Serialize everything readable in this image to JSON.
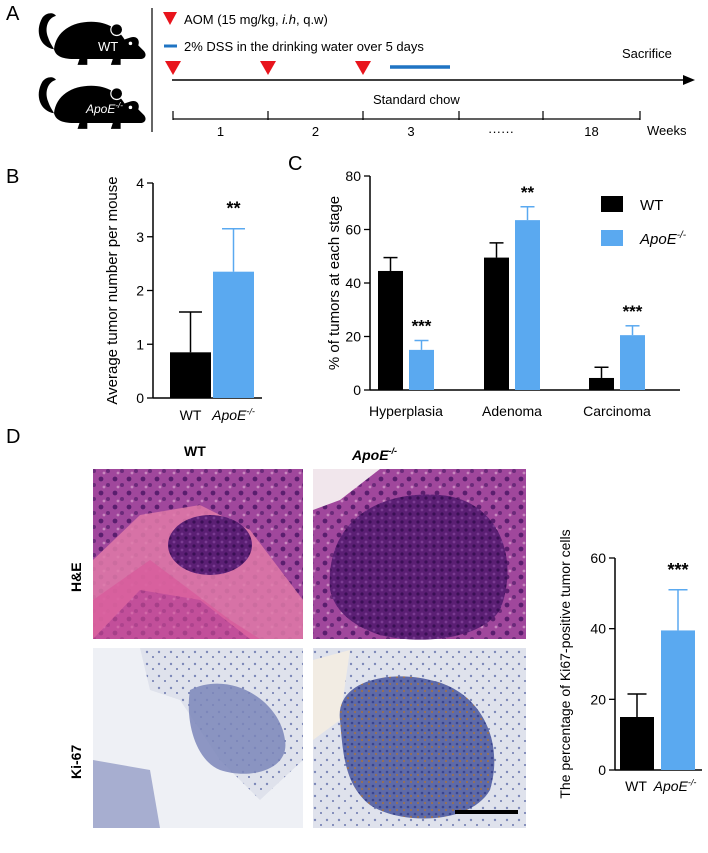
{
  "panels": {
    "a": "A",
    "b": "B",
    "c": "C",
    "d": "D"
  },
  "colors": {
    "wt": "#000000",
    "apoe": "#5aa9f0",
    "aom_marker": "#e8141c",
    "dss_bar": "#1f74c3"
  },
  "timeline": {
    "mouse_wt_label": "WT",
    "mouse_apoe_label": "ApoE",
    "mouse_apoe_sup": "-/-",
    "legend_aom_prefix": "AOM (15 mg/kg, ",
    "legend_aom_route": "i.h",
    "legend_aom_suffix": ", q.w)",
    "legend_dss": "2% DSS in the drinking water over 5 days",
    "sacrifice": "Sacrifice",
    "chow": "Standard chow",
    "weeks": [
      "1",
      "2",
      "3",
      "······",
      "18"
    ],
    "weeks_label": "Weeks",
    "icons": [
      "mouse-icon",
      "triangle-down-icon"
    ]
  },
  "chart_data": [
    {
      "type": "bar",
      "id": "B",
      "categories": [
        "WT",
        "ApoE-/-"
      ],
      "category_labels": [
        {
          "base": "WT",
          "sup": ""
        },
        {
          "base": "ApoE",
          "sup": "-/-"
        }
      ],
      "values": [
        0.85,
        2.35
      ],
      "errors": [
        0.75,
        0.8
      ],
      "ylabel": "Average tumor number per mouse",
      "ylim": [
        0,
        4
      ],
      "yticks": [
        "0",
        "1",
        "2",
        "3",
        "4"
      ],
      "annotations": [
        "",
        "**"
      ]
    },
    {
      "type": "bar",
      "id": "C",
      "categories": [
        "Hyperplasia",
        "Adenoma",
        "Carcinoma"
      ],
      "series": [
        {
          "name": "WT",
          "values": [
            44.5,
            49.5,
            4.5
          ],
          "errors": [
            5,
            5.5,
            4
          ]
        },
        {
          "name": "ApoE-/-",
          "values": [
            15,
            63.5,
            20.5
          ],
          "errors": [
            3.5,
            5,
            3.5
          ]
        }
      ],
      "legend": [
        {
          "base": "WT",
          "sup": ""
        },
        {
          "base": "ApoE",
          "sup": "-/-"
        }
      ],
      "annotations": [
        [
          "",
          "***"
        ],
        [
          "",
          "**"
        ],
        [
          "",
          "***"
        ]
      ],
      "ylabel": "% of tumors at each stage",
      "ylim": [
        0,
        80
      ],
      "yticks": [
        "0",
        "20",
        "40",
        "60",
        "80"
      ],
      "legend_position": "top-right"
    },
    {
      "type": "bar",
      "id": "D",
      "categories": [
        "WT",
        "ApoE-/-"
      ],
      "category_labels": [
        {
          "base": "WT",
          "sup": ""
        },
        {
          "base": "ApoE",
          "sup": "-/-"
        }
      ],
      "values": [
        15,
        39.5
      ],
      "errors": [
        6.5,
        11.5
      ],
      "ylabel": "The percentage of Ki67-positive tumor cells",
      "ylim": [
        0,
        60
      ],
      "yticks": [
        "0",
        "20",
        "40",
        "60"
      ],
      "annotations": [
        "",
        "***"
      ]
    }
  ],
  "micrographs": {
    "col_wt": "WT",
    "col_apoe": "ApoE",
    "col_apoe_sup": "-/-",
    "row_he": "H&E",
    "row_ki67": "Ki-67",
    "he_color": "#8a3f8c",
    "ki67_color": "#9aa6cf"
  }
}
